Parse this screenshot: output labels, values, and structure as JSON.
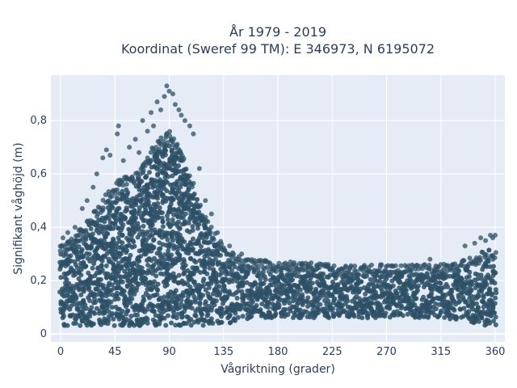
{
  "chart_data": {
    "type": "scatter",
    "title": "År 1979 - 2019",
    "subtitle": "Koordinat (Sweref 99 TM): E 346973, N 6195072",
    "xlabel": "Vågriktning (grader)",
    "ylabel": "Signifikant våghöjd (m)",
    "xlim": [
      -8,
      368
    ],
    "ylim": [
      -0.03,
      0.97
    ],
    "x_ticks": [
      0,
      45,
      90,
      135,
      180,
      225,
      270,
      315,
      360
    ],
    "x_tick_labels": [
      "0",
      "45",
      "90",
      "135",
      "180",
      "225",
      "270",
      "315",
      "360"
    ],
    "y_ticks": [
      0,
      0.2,
      0.4,
      0.6,
      0.8
    ],
    "y_tick_labels": [
      "0",
      "0,2",
      "0,4",
      "0,6",
      "0,8"
    ],
    "grid": true,
    "marker_color": "#2d5066",
    "envelope": {
      "x": [
        0,
        10,
        20,
        30,
        40,
        45,
        50,
        60,
        70,
        80,
        90,
        100,
        110,
        120,
        130,
        135,
        140,
        150,
        160,
        180,
        200,
        225,
        250,
        270,
        290,
        315,
        330,
        340,
        350,
        360
      ],
      "y_min": [
        0.03,
        0.03,
        0.03,
        0.03,
        0.03,
        0.03,
        0.03,
        0.03,
        0.03,
        0.03,
        0.03,
        0.03,
        0.03,
        0.03,
        0.03,
        0.03,
        0.04,
        0.05,
        0.06,
        0.06,
        0.06,
        0.06,
        0.06,
        0.06,
        0.06,
        0.06,
        0.05,
        0.04,
        0.03,
        0.03
      ],
      "y_max": [
        0.3,
        0.33,
        0.37,
        0.43,
        0.5,
        0.52,
        0.55,
        0.55,
        0.62,
        0.68,
        0.72,
        0.66,
        0.52,
        0.4,
        0.32,
        0.29,
        0.27,
        0.25,
        0.24,
        0.23,
        0.23,
        0.22,
        0.22,
        0.22,
        0.22,
        0.22,
        0.23,
        0.25,
        0.27,
        0.28
      ]
    },
    "notable_points": [
      {
        "x": 2,
        "y": 0.36
      },
      {
        "x": 6,
        "y": 0.38
      },
      {
        "x": 12,
        "y": 0.4
      },
      {
        "x": 18,
        "y": 0.47
      },
      {
        "x": 22,
        "y": 0.5
      },
      {
        "x": 27,
        "y": 0.55
      },
      {
        "x": 30,
        "y": 0.6
      },
      {
        "x": 35,
        "y": 0.66
      },
      {
        "x": 38,
        "y": 0.69
      },
      {
        "x": 41,
        "y": 0.67
      },
      {
        "x": 47,
        "y": 0.75
      },
      {
        "x": 48,
        "y": 0.78
      },
      {
        "x": 52,
        "y": 0.65
      },
      {
        "x": 57,
        "y": 0.7
      },
      {
        "x": 62,
        "y": 0.73
      },
      {
        "x": 65,
        "y": 0.68
      },
      {
        "x": 68,
        "y": 0.8
      },
      {
        "x": 72,
        "y": 0.76
      },
      {
        "x": 75,
        "y": 0.83
      },
      {
        "x": 77,
        "y": 0.78
      },
      {
        "x": 80,
        "y": 0.87
      },
      {
        "x": 83,
        "y": 0.84
      },
      {
        "x": 86,
        "y": 0.89
      },
      {
        "x": 88,
        "y": 0.93
      },
      {
        "x": 90,
        "y": 0.91
      },
      {
        "x": 93,
        "y": 0.9
      },
      {
        "x": 95,
        "y": 0.86
      },
      {
        "x": 98,
        "y": 0.84
      },
      {
        "x": 100,
        "y": 0.82
      },
      {
        "x": 103,
        "y": 0.8
      },
      {
        "x": 107,
        "y": 0.78
      },
      {
        "x": 110,
        "y": 0.75
      },
      {
        "x": 115,
        "y": 0.62
      },
      {
        "x": 120,
        "y": 0.5
      },
      {
        "x": 125,
        "y": 0.45
      },
      {
        "x": 130,
        "y": 0.38
      },
      {
        "x": 140,
        "y": 0.33
      },
      {
        "x": 150,
        "y": 0.3
      },
      {
        "x": 170,
        "y": 0.27
      },
      {
        "x": 200,
        "y": 0.26
      },
      {
        "x": 240,
        "y": 0.25
      },
      {
        "x": 290,
        "y": 0.24
      },
      {
        "x": 306,
        "y": 0.28
      },
      {
        "x": 315,
        "y": 0.26
      },
      {
        "x": 325,
        "y": 0.26
      },
      {
        "x": 335,
        "y": 0.33
      },
      {
        "x": 343,
        "y": 0.34
      },
      {
        "x": 348,
        "y": 0.36
      },
      {
        "x": 352,
        "y": 0.35
      },
      {
        "x": 356,
        "y": 0.37
      },
      {
        "x": 358,
        "y": 0.36
      },
      {
        "x": 360,
        "y": 0.37
      }
    ]
  }
}
